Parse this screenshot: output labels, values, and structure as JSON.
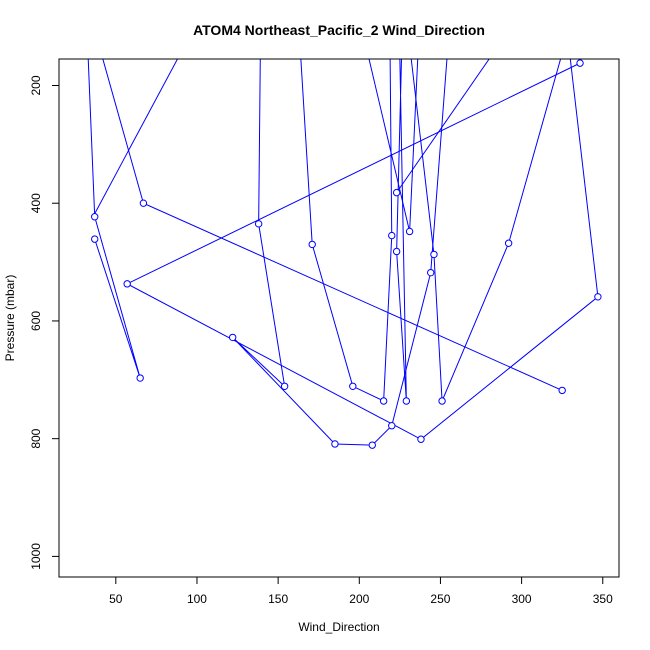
{
  "chart_data": {
    "type": "line",
    "title": "ATOM4 Northeast_Pacific_2 Wind_Direction",
    "xlabel": "Wind_Direction",
    "ylabel": "Pressure (mbar)",
    "xlim": [
      15,
      360
    ],
    "ylim": [
      1035,
      155
    ],
    "x_ticks": [
      50,
      100,
      150,
      200,
      250,
      300,
      350
    ],
    "y_ticks": [
      200,
      400,
      600,
      800,
      1000
    ],
    "line_color": "#0000ff",
    "grid": false,
    "segments": [
      {
        "points": [
          [
            33,
            155
          ],
          [
            37,
            423
          ],
          [
            65,
            697
          ],
          [
            37,
            461
          ]
        ],
        "enter_from": 30,
        "exit_to": 32
      },
      {
        "points": [
          [
            42,
            155
          ],
          [
            67,
            400
          ],
          [
            325,
            718
          ]
        ]
      },
      {
        "points": [
          [
            88,
            155
          ],
          [
            36,
            423
          ]
        ],
        "enter_from": 36,
        "exit_to": 33
      },
      {
        "points": [
          [
            139,
            155
          ],
          [
            138,
            435
          ],
          [
            154,
            711
          ],
          [
            122,
            628
          ],
          [
            185,
            809
          ],
          [
            208,
            811
          ],
          [
            220,
            778
          ],
          [
            244,
            518
          ],
          [
            254,
            155
          ]
        ]
      },
      {
        "points": [
          [
            164,
            155
          ],
          [
            171,
            470
          ],
          [
            196,
            711
          ],
          [
            215,
            736
          ],
          [
            220,
            455
          ],
          [
            219,
            155
          ]
        ]
      },
      {
        "points": [
          [
            57,
            537
          ],
          [
            336,
            162
          ]
        ]
      },
      {
        "points": [
          [
            57,
            537
          ],
          [
            238,
            801
          ],
          [
            347,
            559
          ]
        ]
      },
      {
        "points": [
          [
            226,
            155
          ],
          [
            223,
            482
          ],
          [
            229,
            736
          ],
          [
            225,
            155
          ]
        ]
      },
      {
        "points": [
          [
            232,
            155
          ],
          [
            246,
            487
          ],
          [
            251,
            736
          ],
          [
            292,
            468
          ],
          [
            324,
            155
          ]
        ]
      },
      {
        "points": [
          [
            206,
            155
          ],
          [
            231,
            448
          ],
          [
            236,
            155
          ]
        ]
      },
      {
        "points": [
          [
            223,
            382
          ],
          [
            280,
            155
          ]
        ]
      },
      {
        "points": [
          [
            330,
            155
          ],
          [
            347,
            559
          ]
        ]
      }
    ],
    "markers": [
      [
        37,
        423
      ],
      [
        37,
        461
      ],
      [
        65,
        697
      ],
      [
        67,
        400
      ],
      [
        57,
        537
      ],
      [
        138,
        435
      ],
      [
        154,
        711
      ],
      [
        122,
        628
      ],
      [
        171,
        470
      ],
      [
        196,
        711
      ],
      [
        185,
        809
      ],
      [
        208,
        811
      ],
      [
        215,
        736
      ],
      [
        220,
        455
      ],
      [
        220,
        778
      ],
      [
        223,
        382
      ],
      [
        223,
        482
      ],
      [
        229,
        736
      ],
      [
        231,
        448
      ],
      [
        244,
        518
      ],
      [
        246,
        487
      ],
      [
        251,
        736
      ],
      [
        238,
        801
      ],
      [
        292,
        468
      ],
      [
        325,
        718
      ],
      [
        336,
        162
      ],
      [
        347,
        559
      ]
    ]
  }
}
